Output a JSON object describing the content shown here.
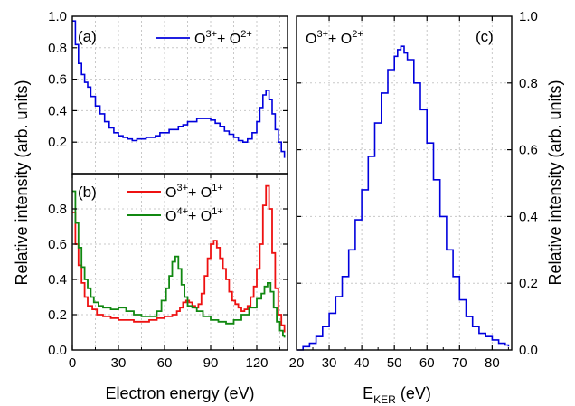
{
  "chart_data": [
    {
      "panel": "(a)",
      "type": "line",
      "xlabel": "Electron energy (eV)",
      "ylabel": "Relative intensity (arb. units)",
      "xlim": [
        0,
        140
      ],
      "ylim": [
        0,
        1.0
      ],
      "x_ticks": [
        "0",
        "30",
        "60",
        "90",
        "120"
      ],
      "y_ticks": [
        "0.2",
        "0.4",
        "0.6",
        "0.8",
        "1.0"
      ],
      "grid": true,
      "legend_position": "top-right",
      "series": [
        {
          "name": "O3+ + O2+",
          "label_parts": [
            "O",
            "3+",
            "+ O",
            "2+"
          ],
          "color": "#0000dd",
          "x": [
            0,
            2,
            4,
            6,
            8,
            10,
            12,
            15,
            18,
            21,
            24,
            27,
            30,
            33,
            36,
            39,
            42,
            45,
            48,
            51,
            54,
            57,
            60,
            63,
            66,
            69,
            72,
            75,
            78,
            81,
            84,
            87,
            90,
            93,
            96,
            99,
            102,
            105,
            108,
            111,
            114,
            117,
            120,
            122,
            124,
            126,
            128,
            130,
            132,
            134,
            136,
            138
          ],
          "y": [
            0.97,
            0.82,
            0.7,
            0.63,
            0.58,
            0.55,
            0.49,
            0.43,
            0.38,
            0.33,
            0.29,
            0.26,
            0.24,
            0.23,
            0.22,
            0.21,
            0.22,
            0.22,
            0.23,
            0.23,
            0.24,
            0.26,
            0.26,
            0.28,
            0.28,
            0.3,
            0.31,
            0.33,
            0.33,
            0.35,
            0.35,
            0.35,
            0.34,
            0.32,
            0.3,
            0.27,
            0.25,
            0.23,
            0.21,
            0.2,
            0.22,
            0.26,
            0.33,
            0.42,
            0.5,
            0.53,
            0.47,
            0.38,
            0.28,
            0.2,
            0.14,
            0.1
          ]
        }
      ]
    },
    {
      "panel": "(b)",
      "type": "line",
      "xlabel": "Electron energy (eV)",
      "ylabel": "Relative intensity (arb. units)",
      "xlim": [
        0,
        140
      ],
      "ylim": [
        0,
        1.0
      ],
      "x_ticks": [
        "0",
        "30",
        "60",
        "90",
        "120"
      ],
      "y_ticks": [
        "0.0",
        "0.2",
        "0.4",
        "0.6",
        "0.8"
      ],
      "grid": true,
      "legend_position": "top-right",
      "series": [
        {
          "name": "O3+ + O1+",
          "label_parts": [
            "O",
            "3+",
            "+ O",
            "1+"
          ],
          "color": "#ee1111",
          "x": [
            0,
            2,
            4,
            6,
            8,
            10,
            13,
            16,
            20,
            25,
            30,
            35,
            40,
            45,
            50,
            55,
            60,
            65,
            68,
            70,
            72,
            74,
            76,
            78,
            80,
            82,
            84,
            86,
            88,
            90,
            92,
            94,
            96,
            98,
            100,
            102,
            104,
            106,
            108,
            110,
            112,
            114,
            116,
            118,
            120,
            122,
            124,
            126,
            128,
            130,
            132,
            134,
            136,
            138
          ],
          "y": [
            0.78,
            0.6,
            0.48,
            0.38,
            0.3,
            0.25,
            0.23,
            0.2,
            0.19,
            0.18,
            0.17,
            0.17,
            0.16,
            0.16,
            0.17,
            0.18,
            0.19,
            0.2,
            0.22,
            0.24,
            0.27,
            0.28,
            0.27,
            0.25,
            0.24,
            0.26,
            0.32,
            0.42,
            0.52,
            0.6,
            0.62,
            0.58,
            0.52,
            0.46,
            0.4,
            0.33,
            0.28,
            0.26,
            0.24,
            0.22,
            0.23,
            0.25,
            0.3,
            0.36,
            0.46,
            0.6,
            0.82,
            0.93,
            0.8,
            0.55,
            0.35,
            0.2,
            0.14,
            0.1
          ]
        },
        {
          "name": "O4+ + O1+",
          "label_parts": [
            "O",
            "4+",
            "+ O",
            "1+"
          ],
          "color": "#118811",
          "x": [
            0,
            2,
            4,
            6,
            8,
            10,
            12,
            14,
            17,
            20,
            25,
            30,
            35,
            40,
            45,
            50,
            55,
            58,
            61,
            63,
            65,
            67,
            69,
            71,
            73,
            75,
            78,
            81,
            85,
            90,
            95,
            100,
            105,
            110,
            115,
            120,
            123,
            125,
            127,
            129,
            131,
            133,
            135,
            137,
            138
          ],
          "y": [
            0.9,
            0.72,
            0.58,
            0.47,
            0.4,
            0.35,
            0.3,
            0.27,
            0.25,
            0.24,
            0.23,
            0.24,
            0.22,
            0.2,
            0.19,
            0.19,
            0.22,
            0.28,
            0.35,
            0.42,
            0.5,
            0.53,
            0.46,
            0.37,
            0.3,
            0.25,
            0.24,
            0.22,
            0.19,
            0.17,
            0.16,
            0.15,
            0.17,
            0.2,
            0.24,
            0.29,
            0.32,
            0.36,
            0.38,
            0.33,
            0.24,
            0.16,
            0.11,
            0.08,
            0.07
          ]
        }
      ]
    },
    {
      "panel": "(c)",
      "type": "line",
      "xlabel": "E",
      "xlabel_sub": "KER",
      "xlabel_unit": " (eV)",
      "ylabel": "Relative intensity (arb. units)",
      "xlim": [
        20,
        86
      ],
      "ylim": [
        0,
        1.0
      ],
      "x_ticks": [
        "20",
        "30",
        "40",
        "50",
        "60",
        "70",
        "80"
      ],
      "y_ticks": [
        "0.0",
        "0.2",
        "0.4",
        "0.6",
        "0.8",
        "1.0"
      ],
      "grid": true,
      "legend_position": "top-left",
      "series": [
        {
          "name": "O3+ + O2+",
          "label_parts": [
            "O",
            "3+",
            "+ O",
            "2+"
          ],
          "color": "#0000dd",
          "x": [
            20,
            22,
            24,
            26,
            28,
            30,
            32,
            34,
            36,
            38,
            40,
            42,
            44,
            46,
            48,
            50,
            51,
            52,
            53,
            54,
            56,
            58,
            60,
            62,
            64,
            66,
            68,
            70,
            72,
            74,
            76,
            78,
            80,
            82,
            84,
            85
          ],
          "y": [
            0.0,
            0.01,
            0.02,
            0.04,
            0.07,
            0.11,
            0.16,
            0.22,
            0.3,
            0.39,
            0.48,
            0.58,
            0.68,
            0.77,
            0.84,
            0.88,
            0.9,
            0.91,
            0.89,
            0.87,
            0.8,
            0.72,
            0.62,
            0.51,
            0.4,
            0.3,
            0.22,
            0.15,
            0.1,
            0.07,
            0.05,
            0.04,
            0.03,
            0.02,
            0.015,
            0.01
          ]
        }
      ]
    }
  ]
}
